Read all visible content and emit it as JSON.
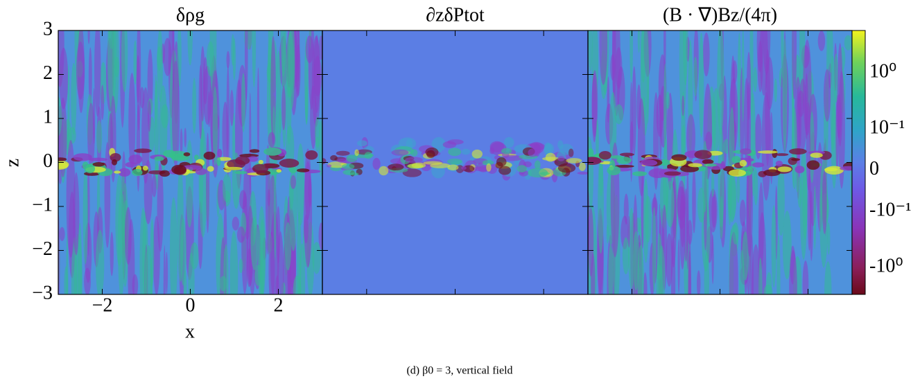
{
  "chart_data": {
    "type": "heatmap",
    "panels": [
      {
        "title": "δρg"
      },
      {
        "title": "∂zδPtot"
      },
      {
        "title": "(B · ∇)Bz/(4π)"
      }
    ],
    "xlabel": "x",
    "ylabel": "z",
    "xlim": [
      -3,
      3
    ],
    "ylim": [
      -3,
      3
    ],
    "xticks": [
      {
        "value": -2,
        "label": "−2"
      },
      0,
      2
    ],
    "yticks": [
      {
        "value": -3,
        "label": "−3"
      },
      {
        "value": -2,
        "label": "−2"
      },
      {
        "value": -1,
        "label": "−1"
      },
      0,
      1,
      2,
      3
    ],
    "colorbar": {
      "scale": "symlog",
      "linthresh": 0.1,
      "clim": [
        -3,
        5.6
      ],
      "ticks": [
        {
          "value": 1,
          "label": "10⁰"
        },
        {
          "value": 0.1,
          "label": "10⁻¹"
        },
        0,
        {
          "value": -0.1,
          "label": "-10⁻¹"
        },
        {
          "value": -1,
          "label": "-10⁰"
        }
      ]
    },
    "caption": "(d) β0 = 3, vertical field"
  }
}
